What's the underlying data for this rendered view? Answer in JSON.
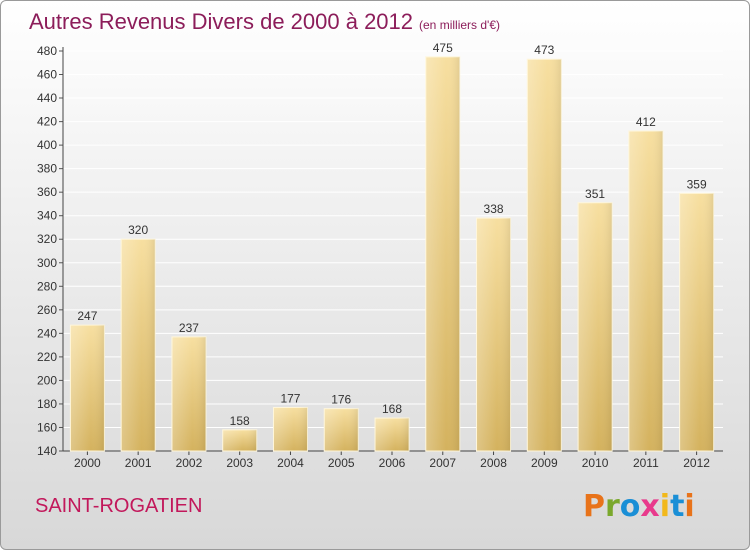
{
  "header": {
    "title": "Autres Revenus Divers de 2000 à 2012",
    "unit": "(en milliers d'€)"
  },
  "footer": {
    "commune": "SAINT-ROGATIEN",
    "logo_text": "Proxiti"
  },
  "colors": {
    "title": "#8c1d5a",
    "commune": "#c2185b",
    "bar_light": "#f7dfa0",
    "bar_dark": "#d4b25e",
    "logo": [
      "#e8731a",
      "#7aa82c",
      "#1a8fd6",
      "#e83a8c",
      "#f2b81a",
      "#1a8fd6",
      "#e8731a"
    ]
  },
  "chart_data": {
    "type": "bar",
    "title": "Autres Revenus Divers de 2000 à 2012",
    "subtitle": "(en milliers d'€)",
    "categories": [
      "2000",
      "2001",
      "2002",
      "2003",
      "2004",
      "2005",
      "2006",
      "2007",
      "2008",
      "2009",
      "2010",
      "2011",
      "2012"
    ],
    "values": [
      247,
      320,
      237,
      158,
      177,
      176,
      168,
      475,
      338,
      473,
      351,
      412,
      359
    ],
    "ylim": [
      140,
      480
    ],
    "yticks": [
      140,
      160,
      180,
      200,
      220,
      240,
      260,
      280,
      300,
      320,
      340,
      360,
      380,
      400,
      420,
      440,
      460,
      480
    ],
    "grid": true,
    "data_labels": true
  }
}
